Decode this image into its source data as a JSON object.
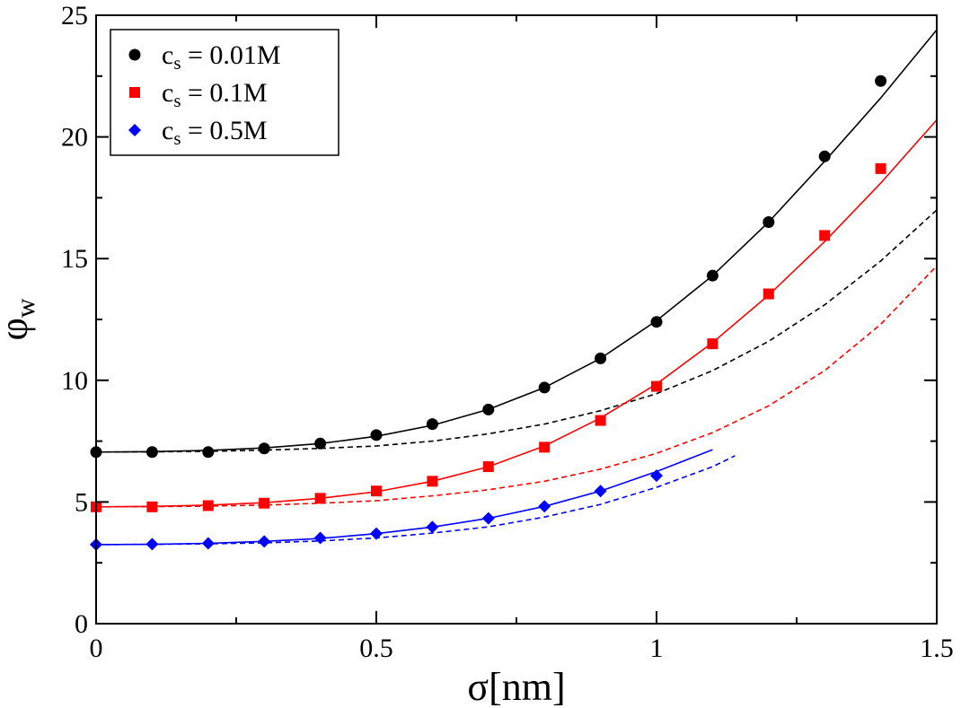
{
  "chart_data": {
    "type": "scatter",
    "xlabel": "σ[nm]",
    "ylabel": "φw",
    "xlim": [
      0,
      1.5
    ],
    "ylim": [
      0,
      25
    ],
    "x_ticks": [
      0,
      0.5,
      1,
      1.5
    ],
    "x_tick_labels": [
      "0",
      "0.5",
      "1",
      "1.5"
    ],
    "y_ticks": [
      0,
      5,
      10,
      15,
      20,
      25
    ],
    "y_tick_labels": [
      "0",
      "5",
      "10",
      "15",
      "20",
      "25"
    ],
    "grid": false,
    "legend_position": "top-left",
    "series": [
      {
        "name": "cs = 0.01M",
        "legend_main": "c",
        "legend_sub": "s",
        "legend_rest": " = 0.01M",
        "color": "#000000",
        "marker": "circle",
        "x": [
          0,
          0.1,
          0.2,
          0.3,
          0.4,
          0.5,
          0.6,
          0.7,
          0.8,
          0.9,
          1.0,
          1.1,
          1.2,
          1.3,
          1.4
        ],
        "y": [
          7.05,
          7.05,
          7.05,
          7.2,
          7.4,
          7.75,
          8.2,
          8.8,
          9.7,
          10.9,
          12.4,
          14.3,
          16.5,
          19.2,
          22.3
        ],
        "fit_solid": {
          "x": [
            0,
            0.1,
            0.2,
            0.3,
            0.4,
            0.5,
            0.6,
            0.7,
            0.8,
            0.9,
            1.0,
            1.1,
            1.2,
            1.3,
            1.4,
            1.5
          ],
          "y": [
            7.05,
            7.07,
            7.12,
            7.22,
            7.4,
            7.7,
            8.15,
            8.8,
            9.7,
            10.9,
            12.45,
            14.3,
            16.5,
            19.0,
            21.6,
            24.4
          ]
        },
        "fit_dashed": {
          "x": [
            0,
            0.1,
            0.2,
            0.3,
            0.4,
            0.5,
            0.6,
            0.7,
            0.8,
            0.9,
            1.0,
            1.1,
            1.2,
            1.3,
            1.4,
            1.5
          ],
          "y": [
            7.05,
            7.06,
            7.08,
            7.13,
            7.2,
            7.3,
            7.5,
            7.8,
            8.2,
            8.75,
            9.45,
            10.4,
            11.6,
            13.1,
            14.9,
            17.0
          ]
        }
      },
      {
        "name": "cs = 0.1M",
        "legend_main": "c",
        "legend_sub": "s",
        "legend_rest": " = 0.1M",
        "color": "#ff0000",
        "marker": "square",
        "x": [
          0,
          0.1,
          0.2,
          0.3,
          0.4,
          0.5,
          0.6,
          0.7,
          0.8,
          0.9,
          1.0,
          1.1,
          1.2,
          1.3,
          1.4
        ],
        "y": [
          4.8,
          4.8,
          4.85,
          4.95,
          5.15,
          5.45,
          5.85,
          6.45,
          7.25,
          8.35,
          9.75,
          11.5,
          13.55,
          15.95,
          18.7
        ],
        "fit_solid": {
          "x": [
            0,
            0.1,
            0.2,
            0.3,
            0.4,
            0.5,
            0.6,
            0.7,
            0.8,
            0.9,
            1.0,
            1.1,
            1.2,
            1.3,
            1.4,
            1.5
          ],
          "y": [
            4.8,
            4.82,
            4.87,
            4.97,
            5.15,
            5.42,
            5.85,
            6.45,
            7.3,
            8.45,
            9.85,
            11.55,
            13.5,
            15.7,
            18.1,
            20.7
          ]
        },
        "fit_dashed": {
          "x": [
            0,
            0.1,
            0.2,
            0.3,
            0.4,
            0.5,
            0.6,
            0.7,
            0.8,
            0.9,
            1.0,
            1.1,
            1.2,
            1.3,
            1.4,
            1.5
          ],
          "y": [
            4.8,
            4.81,
            4.83,
            4.87,
            4.95,
            5.05,
            5.25,
            5.5,
            5.85,
            6.35,
            7.0,
            7.85,
            8.95,
            10.4,
            12.3,
            14.7
          ]
        }
      },
      {
        "name": "cs = 0.5M",
        "legend_main": "c",
        "legend_sub": "s",
        "legend_rest": " = 0.5M",
        "color": "#0000ff",
        "marker": "diamond",
        "x": [
          0,
          0.1,
          0.2,
          0.3,
          0.4,
          0.5,
          0.6,
          0.7,
          0.8,
          0.9,
          1.0
        ],
        "y": [
          3.25,
          3.27,
          3.3,
          3.38,
          3.52,
          3.7,
          3.97,
          4.33,
          4.82,
          5.45,
          6.08
        ],
        "fit_solid": {
          "x": [
            0,
            0.1,
            0.2,
            0.3,
            0.4,
            0.5,
            0.6,
            0.7,
            0.8,
            0.9,
            1.0,
            1.1
          ],
          "y": [
            3.25,
            3.26,
            3.3,
            3.38,
            3.5,
            3.7,
            3.97,
            4.33,
            4.82,
            5.45,
            6.25,
            7.15
          ]
        },
        "fit_dashed": {
          "x": [
            0,
            0.1,
            0.2,
            0.3,
            0.4,
            0.5,
            0.6,
            0.7,
            0.8,
            0.9,
            1.0,
            1.1,
            1.14
          ],
          "y": [
            3.25,
            3.26,
            3.28,
            3.32,
            3.4,
            3.52,
            3.72,
            3.98,
            4.38,
            4.9,
            5.6,
            6.45,
            6.9
          ]
        }
      }
    ]
  }
}
